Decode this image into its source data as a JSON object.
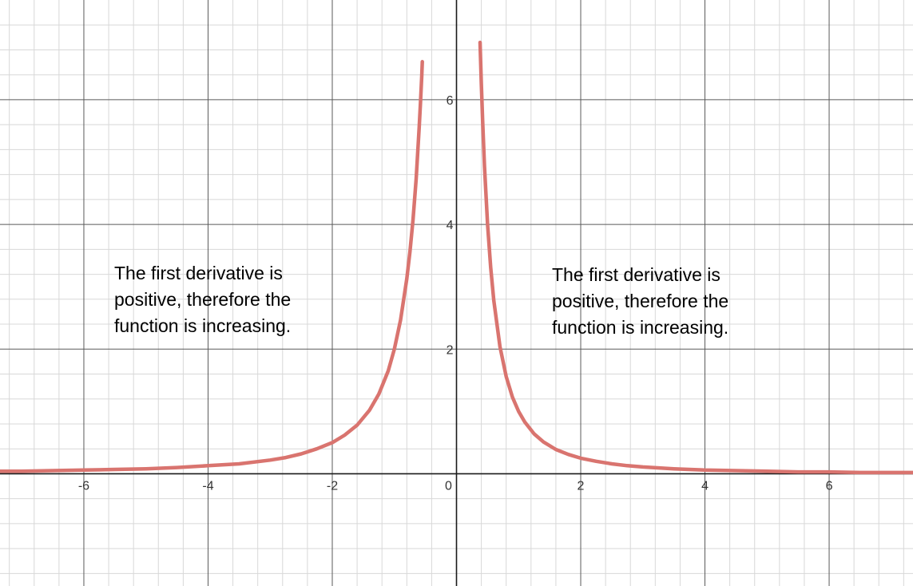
{
  "chart_data": {
    "type": "line",
    "title": "",
    "xlabel": "",
    "ylabel": "",
    "xlim": [
      -7.35,
      7.35
    ],
    "ylim": [
      -1.8,
      7.6
    ],
    "grid": true,
    "x_ticks": [
      {
        "value": -6,
        "label": "-6"
      },
      {
        "value": -4,
        "label": "-4"
      },
      {
        "value": -2,
        "label": "-2"
      },
      {
        "value": 0,
        "label": "0"
      },
      {
        "value": 2,
        "label": "2"
      },
      {
        "value": 4,
        "label": "4"
      },
      {
        "value": 6,
        "label": "6"
      }
    ],
    "y_ticks": [
      {
        "value": 2,
        "label": "2"
      },
      {
        "value": 4,
        "label": "4"
      },
      {
        "value": 6,
        "label": "6"
      }
    ],
    "series": [
      {
        "color": "#d9746f",
        "x": [
          -7.35,
          -7,
          -6.5,
          -6,
          -5.5,
          -5,
          -4.5,
          -4,
          -3.5,
          -3,
          -2.75,
          -2.5,
          -2.25,
          -2,
          -1.8,
          -1.6,
          -1.4,
          -1.25,
          -1.1,
          -1,
          -0.9,
          -0.8,
          -0.75,
          -0.7,
          -0.65,
          -0.6,
          -0.58,
          -0.56,
          -0.55
        ],
        "y": [
          0.04,
          0.04,
          0.05,
          0.06,
          0.07,
          0.08,
          0.1,
          0.13,
          0.16,
          0.22,
          0.26,
          0.32,
          0.4,
          0.5,
          0.62,
          0.78,
          1.02,
          1.28,
          1.65,
          2.0,
          2.47,
          3.13,
          3.56,
          4.08,
          4.73,
          5.56,
          5.95,
          6.38,
          6.61
        ]
      },
      {
        "color": "#d9746f",
        "x": [
          0.38,
          0.4,
          0.42,
          0.45,
          0.5,
          0.55,
          0.6,
          0.7,
          0.8,
          0.9,
          1,
          1.1,
          1.25,
          1.4,
          1.6,
          1.8,
          2,
          2.25,
          2.5,
          2.75,
          3,
          3.5,
          4,
          4.5,
          5,
          5.5,
          6,
          6.5,
          7,
          7.35
        ],
        "y": [
          6.92,
          6.25,
          5.67,
          4.94,
          4.0,
          3.31,
          2.78,
          2.04,
          1.56,
          1.23,
          1.0,
          0.83,
          0.64,
          0.51,
          0.39,
          0.31,
          0.25,
          0.2,
          0.16,
          0.13,
          0.11,
          0.08,
          0.06,
          0.05,
          0.04,
          0.03,
          0.03,
          0.02,
          0.02,
          0.02
        ]
      }
    ],
    "annotations": [
      {
        "text": "The first derivative is\npositive, therefore the\nfunction is increasing."
      },
      {
        "text": "The first derivative is\npositive, therefore the\nfunction is increasing."
      }
    ]
  }
}
